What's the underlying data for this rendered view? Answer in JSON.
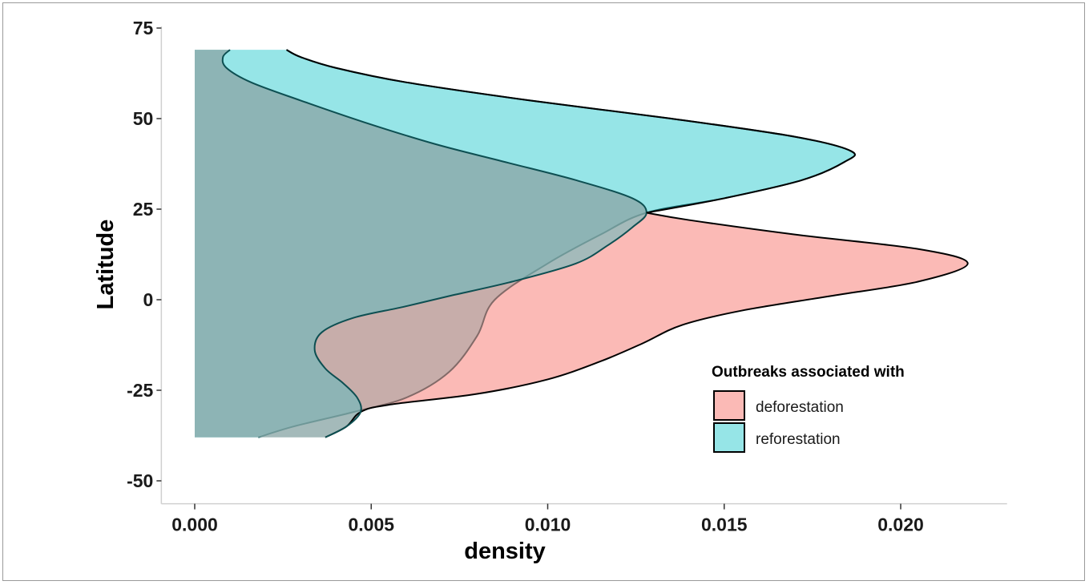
{
  "chart_data": {
    "type": "area",
    "orientation": "horizontal-density",
    "xlabel": "density",
    "ylabel": "Latitude",
    "xlim": [
      -0.0009,
      0.0229
    ],
    "ylim": [
      -55,
      75
    ],
    "x_ticks": [
      0.0,
      0.005,
      0.01,
      0.015,
      0.02
    ],
    "x_tick_labels": [
      "0.000",
      "0.005",
      "0.010",
      "0.015",
      "0.020"
    ],
    "y_ticks": [
      75,
      50,
      25,
      0,
      -25,
      -50
    ],
    "y_tick_labels": [
      "75",
      "50",
      "25",
      "0",
      "-25",
      "-50"
    ],
    "grid": false,
    "legend": {
      "title": "Outbreaks associated with",
      "position": "bottom-right",
      "entries": [
        "deforestation",
        "reforestation"
      ]
    },
    "series": [
      {
        "name": "deforestation",
        "color": "#F8766D",
        "points": [
          {
            "lat": -38,
            "density": 0.0037
          },
          {
            "lat": -35,
            "density": 0.0043
          },
          {
            "lat": -31,
            "density": 0.0047
          },
          {
            "lat": -27,
            "density": 0.0046
          },
          {
            "lat": -23,
            "density": 0.0042
          },
          {
            "lat": -19,
            "density": 0.0037
          },
          {
            "lat": -14,
            "density": 0.0034
          },
          {
            "lat": -9,
            "density": 0.0036
          },
          {
            "lat": -5,
            "density": 0.0045
          },
          {
            "lat": -2,
            "density": 0.0059
          },
          {
            "lat": 1,
            "density": 0.0072
          },
          {
            "lat": 5,
            "density": 0.009
          },
          {
            "lat": 10,
            "density": 0.0108
          },
          {
            "lat": 15,
            "density": 0.0117
          },
          {
            "lat": 20,
            "density": 0.0124
          },
          {
            "lat": 24,
            "density": 0.0128
          },
          {
            "lat": 28,
            "density": 0.0124
          },
          {
            "lat": 33,
            "density": 0.0108
          },
          {
            "lat": 38,
            "density": 0.0088
          },
          {
            "lat": 43,
            "density": 0.0068
          },
          {
            "lat": 49,
            "density": 0.0048
          },
          {
            "lat": 55,
            "density": 0.003
          },
          {
            "lat": 60,
            "density": 0.0016
          },
          {
            "lat": 64,
            "density": 0.0009
          },
          {
            "lat": 67,
            "density": 0.0008
          },
          {
            "lat": 69,
            "density": 0.001
          }
        ],
        "right_edge": [
          {
            "lat": -38,
            "density": 0.0037
          },
          {
            "lat": -35,
            "density": 0.0043
          },
          {
            "lat": -31,
            "density": 0.0047
          },
          {
            "lat": -29,
            "density": 0.0055
          },
          {
            "lat": -26,
            "density": 0.008
          },
          {
            "lat": -22,
            "density": 0.01
          },
          {
            "lat": -17,
            "density": 0.0115
          },
          {
            "lat": -12,
            "density": 0.0127
          },
          {
            "lat": -7,
            "density": 0.0138
          },
          {
            "lat": -3,
            "density": 0.0155
          },
          {
            "lat": 1,
            "density": 0.018
          },
          {
            "lat": 5,
            "density": 0.0205
          },
          {
            "lat": 10,
            "density": 0.0219
          },
          {
            "lat": 14,
            "density": 0.0205
          },
          {
            "lat": 18,
            "density": 0.017
          },
          {
            "lat": 22,
            "density": 0.014
          },
          {
            "lat": 24,
            "density": 0.0128
          }
        ]
      },
      {
        "name": "reforestation",
        "color": "#00BFC4",
        "points": [
          {
            "lat": -38,
            "density": 0.0018
          },
          {
            "lat": -35,
            "density": 0.0028
          },
          {
            "lat": -31,
            "density": 0.0045
          },
          {
            "lat": -27,
            "density": 0.006
          },
          {
            "lat": -20,
            "density": 0.0072
          },
          {
            "lat": -10,
            "density": 0.008
          },
          {
            "lat": 0,
            "density": 0.0085
          },
          {
            "lat": 10,
            "density": 0.01
          },
          {
            "lat": 18,
            "density": 0.0115
          },
          {
            "lat": 24,
            "density": 0.0128
          },
          {
            "lat": 28,
            "density": 0.015
          },
          {
            "lat": 33,
            "density": 0.0172
          },
          {
            "lat": 38,
            "density": 0.0184
          },
          {
            "lat": 41,
            "density": 0.0186
          },
          {
            "lat": 45,
            "density": 0.017
          },
          {
            "lat": 50,
            "density": 0.0135
          },
          {
            "lat": 55,
            "density": 0.0095
          },
          {
            "lat": 60,
            "density": 0.006
          },
          {
            "lat": 64,
            "density": 0.004
          },
          {
            "lat": 67,
            "density": 0.003
          },
          {
            "lat": 69,
            "density": 0.0026
          }
        ]
      }
    ]
  }
}
